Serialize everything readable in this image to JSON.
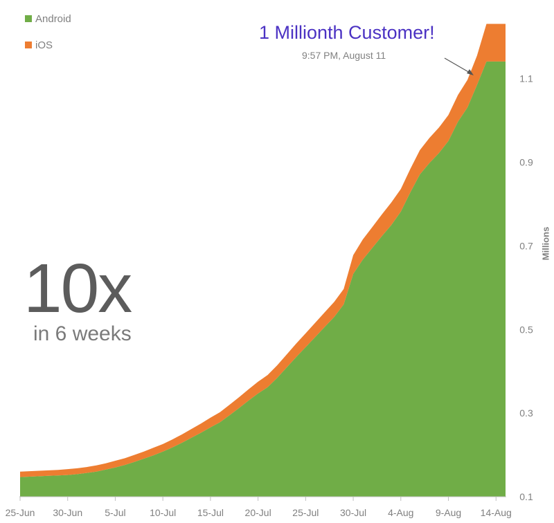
{
  "legend": {
    "android_label": "Android",
    "ios_label": "iOS"
  },
  "annotation": {
    "title": "1 Millionth Customer!",
    "subtitle": "9:57 PM, August 11"
  },
  "big_stat": {
    "number": "10x",
    "caption": "in 6 weeks"
  },
  "colors": {
    "android": "#70ad47",
    "ios": "#ed7d31",
    "annotation": "#4b32c3",
    "text": "#7f7f7f"
  },
  "chart_data": {
    "type": "area",
    "stacked": true,
    "title": "",
    "xlabel": "",
    "ylabel": "Millions",
    "x": [
      "25-Jun",
      "26-Jun",
      "27-Jun",
      "28-Jun",
      "29-Jun",
      "30-Jun",
      "1-Jul",
      "2-Jul",
      "3-Jul",
      "4-Jul",
      "5-Jul",
      "6-Jul",
      "7-Jul",
      "8-Jul",
      "9-Jul",
      "10-Jul",
      "11-Jul",
      "12-Jul",
      "13-Jul",
      "14-Jul",
      "15-Jul",
      "16-Jul",
      "17-Jul",
      "18-Jul",
      "19-Jul",
      "20-Jul",
      "21-Jul",
      "22-Jul",
      "23-Jul",
      "24-Jul",
      "25-Jul",
      "26-Jul",
      "27-Jul",
      "28-Jul",
      "29-Jul",
      "30-Jul",
      "31-Jul",
      "1-Aug",
      "2-Aug",
      "3-Aug",
      "4-Aug",
      "5-Aug",
      "6-Aug",
      "7-Aug",
      "8-Aug",
      "9-Aug",
      "10-Aug",
      "11-Aug",
      "12-Aug",
      "13-Aug",
      "14-Aug",
      "15-Aug"
    ],
    "x_tick_labels": [
      "25-Jun",
      "30-Jun",
      "5-Jul",
      "10-Jul",
      "15-Jul",
      "20-Jul",
      "25-Jul",
      "30-Jul",
      "4-Aug",
      "9-Aug",
      "14-Aug"
    ],
    "y_tick_labels": [
      "0.1",
      "0.3",
      "0.5",
      "0.7",
      "0.9",
      "1.1"
    ],
    "ylim": [
      0.1,
      1.26
    ],
    "y_axis_position": "right",
    "legend_position": "top-left",
    "grid": false,
    "series": [
      {
        "name": "Android",
        "values": [
          0.147,
          0.148,
          0.149,
          0.15,
          0.151,
          0.152,
          0.154,
          0.157,
          0.16,
          0.165,
          0.17,
          0.176,
          0.183,
          0.191,
          0.199,
          0.208,
          0.218,
          0.229,
          0.241,
          0.253,
          0.266,
          0.278,
          0.295,
          0.312,
          0.33,
          0.347,
          0.362,
          0.384,
          0.409,
          0.434,
          0.458,
          0.482,
          0.506,
          0.53,
          0.56,
          0.633,
          0.667,
          0.695,
          0.723,
          0.75,
          0.782,
          0.828,
          0.871,
          0.898,
          0.922,
          0.951,
          0.997,
          1.031,
          1.085,
          1.141,
          1.141,
          1.141
        ]
      },
      {
        "name": "iOS",
        "values": [
          0.013,
          0.013,
          0.013,
          0.013,
          0.013,
          0.014,
          0.014,
          0.014,
          0.015,
          0.015,
          0.016,
          0.016,
          0.017,
          0.017,
          0.018,
          0.018,
          0.019,
          0.02,
          0.021,
          0.022,
          0.023,
          0.024,
          0.025,
          0.026,
          0.027,
          0.028,
          0.029,
          0.03,
          0.031,
          0.032,
          0.033,
          0.034,
          0.035,
          0.036,
          0.037,
          0.045,
          0.048,
          0.05,
          0.052,
          0.054,
          0.054,
          0.056,
          0.058,
          0.06,
          0.061,
          0.062,
          0.064,
          0.066,
          0.07,
          0.09,
          0.09,
          0.09
        ]
      }
    ]
  }
}
